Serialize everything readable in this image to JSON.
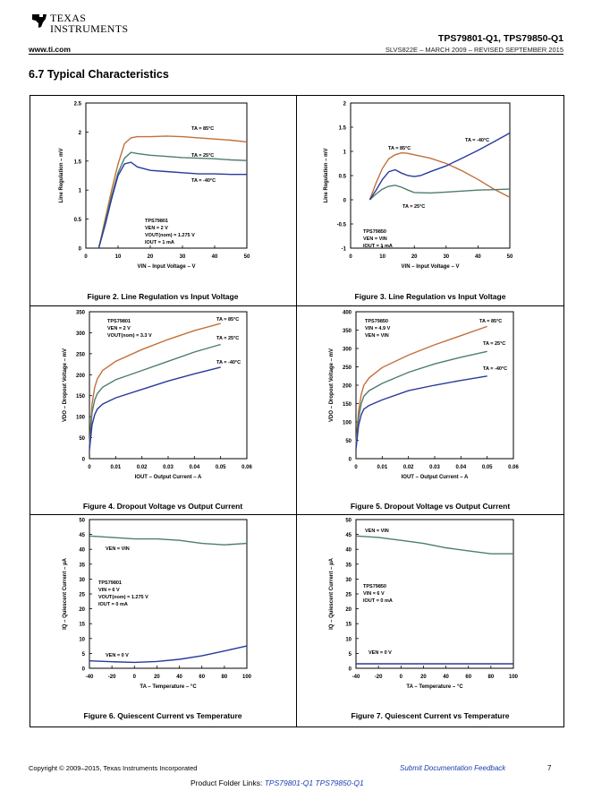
{
  "header": {
    "brand_line1": "TEXAS",
    "brand_line2": "INSTRUMENTS",
    "website": "www.ti.com",
    "parts": "TPS79801-Q1, TPS79850-Q1",
    "doc_id": "SLVS822E – MARCH 2009 – REVISED SEPTEMBER 2015"
  },
  "section_title": "6.7   Typical Characteristics",
  "colors": {
    "ta85": "#c0703a",
    "ta25": "#4e7d6e",
    "tam40": "#283a9c"
  },
  "figures": [
    {
      "caption": "Figure 2. Line Regulation vs Input Voltage"
    },
    {
      "caption": "Figure 3. Line Regulation vs Input Voltage"
    },
    {
      "caption": "Figure 4. Dropout Voltage vs Output Current"
    },
    {
      "caption": "Figure 5. Dropout Voltage vs Output Current"
    },
    {
      "caption": "Figure 6. Quiescent Current vs Temperature"
    },
    {
      "caption": "Figure 7. Quiescent Current vs Temperature"
    }
  ],
  "chart_data": [
    {
      "type": "line",
      "xlabel": "VIN – Input Voltage – V",
      "ylabel": "Line Regulation – mV",
      "xlim": [
        0,
        50
      ],
      "ylim": [
        0,
        2.5
      ],
      "xticks": [
        "0",
        "10",
        "20",
        "30",
        "40",
        "50"
      ],
      "yticks": [
        "0",
        "0.5",
        "1",
        "1.5",
        "2",
        "2.5"
      ],
      "series": [
        {
          "name": "TA = 85°C",
          "color": "ta85",
          "x": [
            4,
            6,
            8,
            10,
            12,
            14,
            16,
            20,
            25,
            30,
            35,
            40,
            45,
            50
          ],
          "y": [
            0,
            0.5,
            1.0,
            1.45,
            1.8,
            1.9,
            1.92,
            1.92,
            1.93,
            1.92,
            1.9,
            1.88,
            1.86,
            1.83
          ]
        },
        {
          "name": "TA = 25°C",
          "color": "ta25",
          "x": [
            4,
            6,
            8,
            10,
            12,
            14,
            16,
            20,
            25,
            30,
            35,
            40,
            45,
            50
          ],
          "y": [
            0,
            0.45,
            0.9,
            1.3,
            1.55,
            1.65,
            1.63,
            1.6,
            1.58,
            1.56,
            1.55,
            1.54,
            1.52,
            1.51
          ]
        },
        {
          "name": "TA = -40°C",
          "color": "tam40",
          "x": [
            4,
            6,
            8,
            10,
            12,
            14,
            16,
            20,
            25,
            30,
            35,
            40,
            45,
            50
          ],
          "y": [
            0,
            0.4,
            0.85,
            1.25,
            1.45,
            1.48,
            1.4,
            1.34,
            1.32,
            1.3,
            1.28,
            1.28,
            1.27,
            1.27
          ]
        }
      ],
      "annotations": [
        "TPS79801",
        "VEN = 2 V",
        "VOUT(nom) = 1.275 V",
        "IOUT = 1 mA"
      ]
    },
    {
      "type": "line",
      "xlabel": "VIN – Input Voltage – V",
      "ylabel": "Line Regulation – mV",
      "xlim": [
        0,
        50
      ],
      "ylim": [
        -1,
        2
      ],
      "xticks": [
        "0",
        "10",
        "20",
        "30",
        "40",
        "50"
      ],
      "yticks": [
        "-1",
        "-0.5",
        "0",
        "0.5",
        "1",
        "1.5",
        "2"
      ],
      "series": [
        {
          "name": "TA = 85°C",
          "color": "ta85",
          "x": [
            6,
            8,
            10,
            12,
            14,
            16,
            18,
            20,
            25,
            30,
            35,
            40,
            45,
            50
          ],
          "y": [
            0,
            0.35,
            0.65,
            0.85,
            0.93,
            0.97,
            0.96,
            0.93,
            0.86,
            0.75,
            0.6,
            0.42,
            0.22,
            0.05
          ]
        },
        {
          "name": "TA = 25°C",
          "color": "ta25",
          "x": [
            6,
            8,
            10,
            12,
            14,
            16,
            18,
            20,
            25,
            30,
            35,
            40,
            45,
            50
          ],
          "y": [
            0,
            0.12,
            0.22,
            0.28,
            0.3,
            0.26,
            0.2,
            0.15,
            0.14,
            0.16,
            0.18,
            0.2,
            0.21,
            0.22
          ]
        },
        {
          "name": "TA = -40°C",
          "color": "tam40",
          "x": [
            6,
            8,
            10,
            12,
            14,
            16,
            18,
            20,
            22,
            25,
            30,
            35,
            40,
            45,
            50
          ],
          "y": [
            0,
            0.2,
            0.42,
            0.58,
            0.62,
            0.55,
            0.5,
            0.48,
            0.5,
            0.58,
            0.7,
            0.86,
            1.02,
            1.2,
            1.38
          ]
        }
      ],
      "annotations": [
        "TPS79850",
        "VEN = VIN",
        "IOUT = 1 mA"
      ]
    },
    {
      "type": "line",
      "xlabel": "IOUT – Output Current – A",
      "ylabel": "VDO – Dropout Voltage – mV",
      "xlim": [
        0,
        0.06
      ],
      "ylim": [
        0,
        350
      ],
      "xticks": [
        "0",
        "0.01",
        "0.02",
        "0.03",
        "0.04",
        "0.05",
        "0.06"
      ],
      "yticks": [
        "0",
        "50",
        "100",
        "150",
        "200",
        "250",
        "300",
        "350"
      ],
      "series": [
        {
          "name": "TA = 85°C",
          "color": "ta85",
          "x": [
            0,
            0.001,
            0.002,
            0.003,
            0.005,
            0.01,
            0.02,
            0.03,
            0.04,
            0.05
          ],
          "y": [
            30,
            130,
            170,
            190,
            210,
            232,
            260,
            284,
            305,
            322
          ]
        },
        {
          "name": "TA = 25°C",
          "color": "ta25",
          "x": [
            0,
            0.001,
            0.002,
            0.003,
            0.005,
            0.01,
            0.02,
            0.03,
            0.04,
            0.05
          ],
          "y": [
            25,
            110,
            140,
            155,
            170,
            188,
            210,
            232,
            254,
            272
          ]
        },
        {
          "name": "TA = -40°C",
          "color": "tam40",
          "x": [
            0,
            0.001,
            0.002,
            0.003,
            0.005,
            0.01,
            0.02,
            0.03,
            0.04,
            0.05
          ],
          "y": [
            20,
            80,
            105,
            118,
            130,
            145,
            165,
            185,
            202,
            218
          ]
        }
      ],
      "annotations": [
        "TPS79801",
        "VEN = 2 V",
        "VOUT(nom) = 3.3 V"
      ]
    },
    {
      "type": "line",
      "xlabel": "IOUT – Output Current – A",
      "ylabel": "VDO – Dropout Voltage – mV",
      "xlim": [
        0,
        0.06
      ],
      "ylim": [
        0,
        400
      ],
      "xticks": [
        "0",
        "0.01",
        "0.02",
        "0.03",
        "0.04",
        "0.05",
        "0.06"
      ],
      "yticks": [
        "0",
        "50",
        "100",
        "150",
        "200",
        "250",
        "300",
        "350",
        "400"
      ],
      "series": [
        {
          "name": "TA = 85°C",
          "color": "ta85",
          "x": [
            0,
            0.001,
            0.002,
            0.003,
            0.005,
            0.01,
            0.02,
            0.03,
            0.04,
            0.05
          ],
          "y": [
            40,
            130,
            175,
            200,
            220,
            248,
            282,
            310,
            335,
            360
          ]
        },
        {
          "name": "TA = 25°C",
          "color": "ta25",
          "x": [
            0,
            0.001,
            0.002,
            0.003,
            0.005,
            0.01,
            0.02,
            0.03,
            0.04,
            0.05
          ],
          "y": [
            30,
            110,
            150,
            170,
            185,
            205,
            235,
            258,
            276,
            292
          ]
        },
        {
          "name": "TA = -40°C",
          "color": "tam40",
          "x": [
            0,
            0.001,
            0.002,
            0.003,
            0.005,
            0.01,
            0.02,
            0.03,
            0.04,
            0.05
          ],
          "y": [
            25,
            90,
            120,
            135,
            145,
            160,
            185,
            200,
            213,
            225
          ]
        }
      ],
      "annotations": [
        "TPS79850",
        "VIN = 4.9 V",
        "VEN = VIN"
      ]
    },
    {
      "type": "line",
      "xlabel": "TA – Temperature – °C",
      "ylabel": "IQ – Quiescent Current – µA",
      "xlim": [
        -40,
        100
      ],
      "ylim": [
        0,
        50
      ],
      "xticks": [
        "-40",
        "-20",
        "0",
        "20",
        "40",
        "60",
        "80",
        "100"
      ],
      "yticks": [
        "0",
        "5",
        "10",
        "15",
        "20",
        "25",
        "30",
        "35",
        "40",
        "45",
        "50"
      ],
      "series": [
        {
          "name": "VEN = VIN",
          "color": "ta25",
          "x": [
            -40,
            -20,
            0,
            20,
            40,
            60,
            80,
            100
          ],
          "y": [
            44.5,
            44,
            43.5,
            43.5,
            43,
            42,
            41.5,
            42
          ]
        },
        {
          "name": "VEN = 0 V",
          "color": "tam40",
          "x": [
            -40,
            -20,
            0,
            20,
            40,
            60,
            80,
            100
          ],
          "y": [
            2.5,
            2.2,
            2.0,
            2.3,
            3.0,
            4.2,
            5.8,
            7.5
          ]
        }
      ],
      "annotations": [
        "TPS79801",
        "VIN = 6 V",
        "VOUT(nom) = 1.275 V",
        "IOUT = 0 mA"
      ]
    },
    {
      "type": "line",
      "xlabel": "TA – Temperature – °C",
      "ylabel": "IQ – Quiescent Current – µA",
      "xlim": [
        -40,
        100
      ],
      "ylim": [
        0,
        50
      ],
      "xticks": [
        "-40",
        "-20",
        "0",
        "20",
        "40",
        "60",
        "80",
        "100"
      ],
      "yticks": [
        "0",
        "5",
        "10",
        "15",
        "20",
        "25",
        "30",
        "35",
        "40",
        "45",
        "50"
      ],
      "series": [
        {
          "name": "VEN = VIN",
          "color": "ta25",
          "x": [
            -40,
            -20,
            0,
            20,
            40,
            60,
            80,
            100
          ],
          "y": [
            44.5,
            44,
            43,
            42,
            40.5,
            39.5,
            38.5,
            38.5
          ]
        },
        {
          "name": "VEN = 0 V",
          "color": "tam40",
          "x": [
            -40,
            -20,
            0,
            20,
            40,
            60,
            80,
            100
          ],
          "y": [
            1.5,
            1.5,
            1.5,
            1.5,
            1.5,
            1.5,
            1.5,
            1.5
          ]
        }
      ],
      "annotations": [
        "TPS79850",
        "VIN = 6 V",
        "IOUT = 0 mA"
      ]
    }
  ],
  "footer": {
    "copyright": "Copyright © 2009–2015, Texas Instruments Incorporated",
    "feedback": "Submit Documentation Feedback",
    "page": "7",
    "product_links_label": "Product Folder Links:",
    "link1": "TPS79801-Q1",
    "link2": "TPS79850-Q1"
  }
}
